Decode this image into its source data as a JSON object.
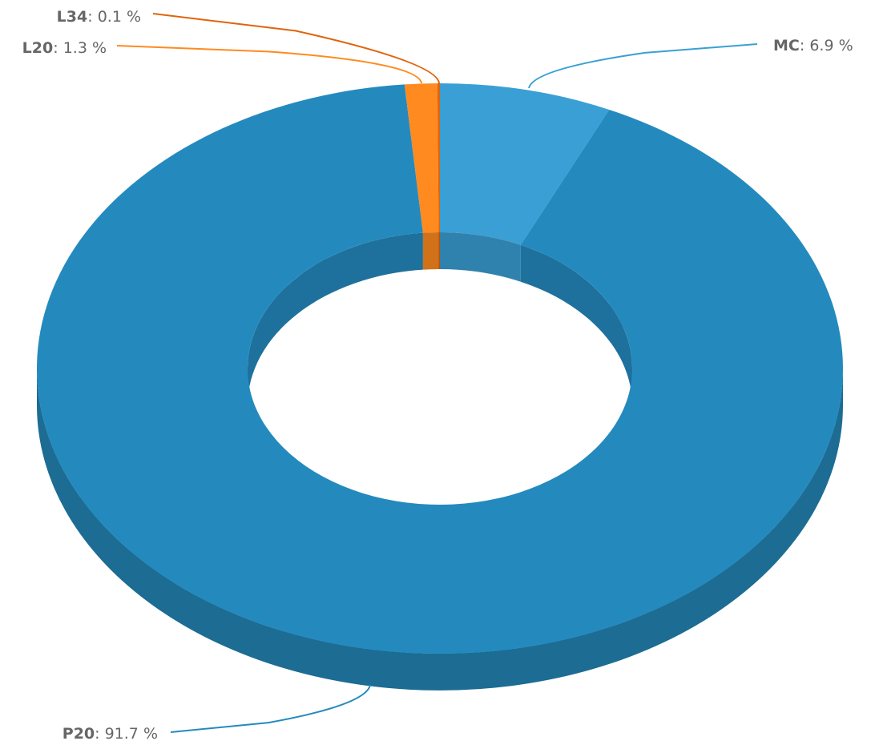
{
  "chart_data": {
    "type": "pie",
    "variant": "3d-donut",
    "start": "top",
    "direction": "clockwise",
    "legend": "none",
    "slices": [
      {
        "name": "MC",
        "value": 6.9,
        "label": "6.9 %",
        "color": "#3a9fd4"
      },
      {
        "name": "P20",
        "value": 91.7,
        "label": "91.7 %",
        "color": "#248abe"
      },
      {
        "name": "L20",
        "value": 1.3,
        "label": "1.3 %",
        "color": "#ff8a1f"
      },
      {
        "name": "L34",
        "value": 0.1,
        "label": "0.1 %",
        "color": "#e0640c"
      }
    ]
  }
}
